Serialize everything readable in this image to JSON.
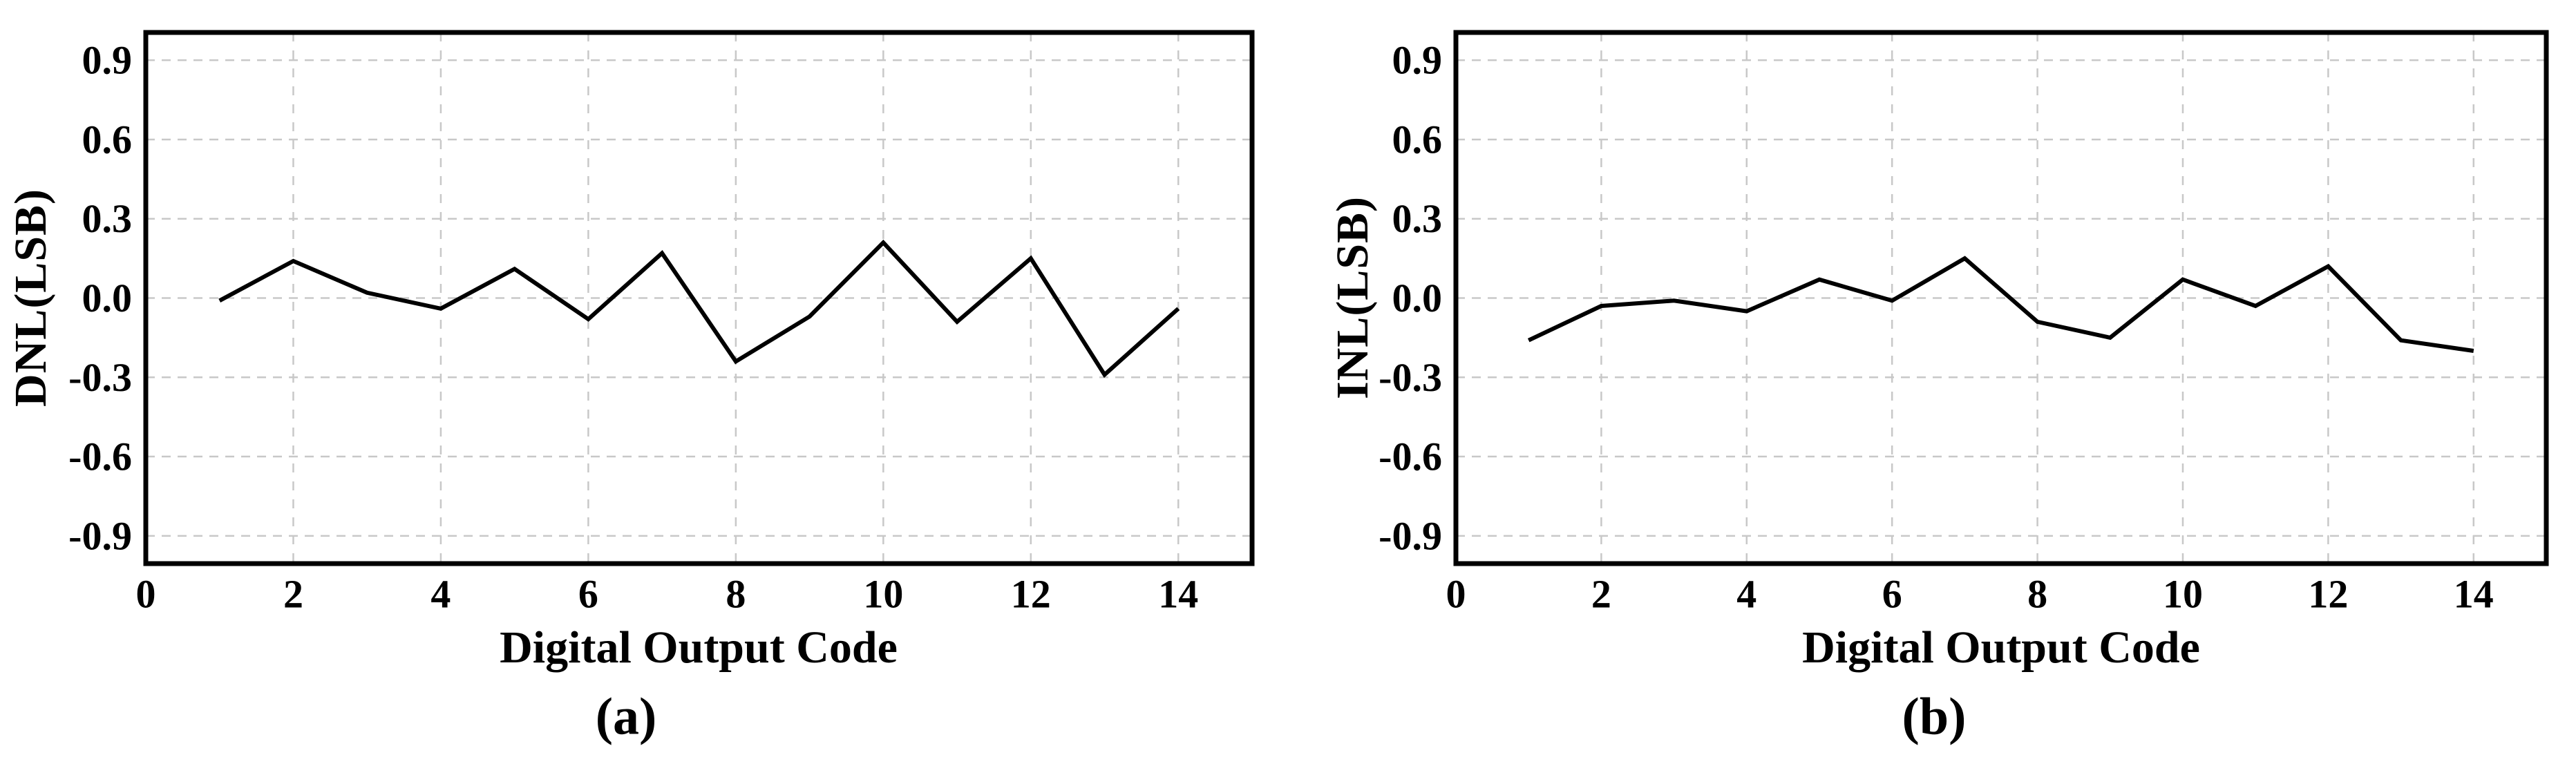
{
  "figure": {
    "background": "#ffffff",
    "grid_color": "#c8c8c8",
    "frame_color": "#000000",
    "line_color": "#000000",
    "text_color": "#000000"
  },
  "chart_data": [
    {
      "type": "line",
      "panel_label": "(a)",
      "xlabel": "Digital Output Code",
      "ylabel": "DNL(LSB)",
      "x": [
        1,
        2,
        3,
        4,
        5,
        6,
        7,
        8,
        9,
        10,
        11,
        12,
        13,
        14
      ],
      "y": [
        -0.01,
        0.14,
        0.02,
        -0.04,
        0.11,
        -0.08,
        0.17,
        -0.24,
        -0.07,
        0.21,
        -0.09,
        0.15,
        -0.29,
        -0.04
      ],
      "xlim": [
        0,
        15
      ],
      "ylim": [
        -1.005,
        1.005
      ],
      "xticks": [
        0,
        2,
        4,
        6,
        8,
        10,
        12,
        14
      ],
      "xtick_labels": [
        "0",
        "2",
        "4",
        "6",
        "8",
        "10",
        "12",
        "14"
      ],
      "yticks": [
        0.9,
        0.6,
        0.3,
        0.0,
        -0.3,
        -0.6,
        -0.9
      ],
      "ytick_labels": [
        "0.9",
        "0.6",
        "0.3",
        "0.0",
        "-0.3",
        "-0.6",
        "-0.9"
      ],
      "grid": true,
      "legend": false
    },
    {
      "type": "line",
      "panel_label": "(b)",
      "xlabel": "Digital Output Code",
      "ylabel": "INL(LSB)",
      "x": [
        1,
        2,
        3,
        4,
        5,
        6,
        7,
        8,
        9,
        10,
        11,
        12,
        13,
        14
      ],
      "y": [
        -0.16,
        -0.03,
        -0.01,
        -0.05,
        0.07,
        -0.01,
        0.15,
        -0.09,
        -0.15,
        0.07,
        -0.03,
        0.12,
        -0.16,
        -0.2
      ],
      "xlim": [
        0,
        15
      ],
      "ylim": [
        -1.005,
        1.005
      ],
      "xticks": [
        0,
        2,
        4,
        6,
        8,
        10,
        12,
        14
      ],
      "xtick_labels": [
        "0",
        "2",
        "4",
        "6",
        "8",
        "10",
        "12",
        "14"
      ],
      "yticks": [
        0.9,
        0.6,
        0.3,
        0.0,
        -0.3,
        -0.6,
        -0.9
      ],
      "ytick_labels": [
        "0.9",
        "0.6",
        "0.3",
        "0.0",
        "-0.3",
        "-0.6",
        "-0.9"
      ],
      "grid": true,
      "legend": false
    }
  ]
}
